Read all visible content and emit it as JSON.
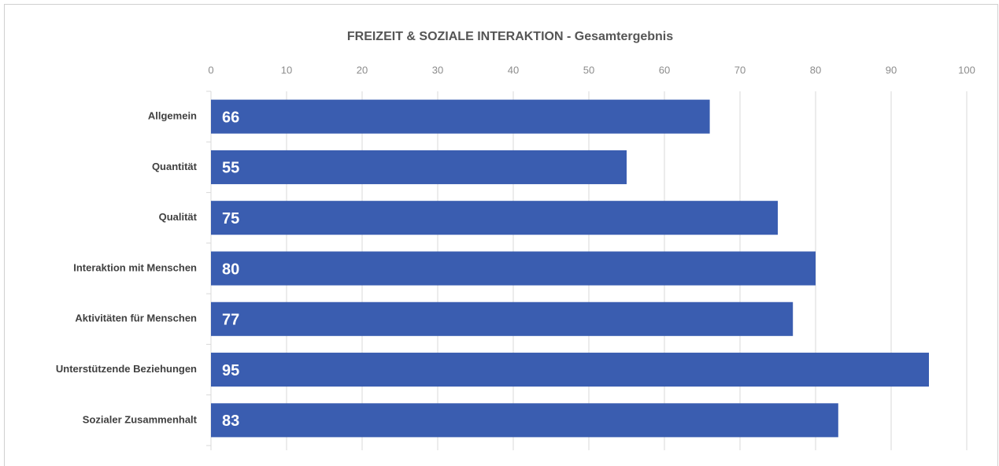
{
  "chart_data": {
    "type": "bar",
    "title": "FREIZEIT & SOZIALE INTERAKTION - Gesamtergebnis",
    "categories": [
      "Allgemein",
      "Quantität",
      "Qualität",
      "Interaktion mit Menschen",
      "Aktivitäten für Menschen",
      "Unterstützende Beziehungen",
      "Sozialer Zusammenhalt"
    ],
    "values": [
      66,
      55,
      75,
      80,
      77,
      95,
      83
    ],
    "color": "#3a5db0",
    "xlim": [
      0,
      100
    ],
    "xticks": [
      0,
      10,
      20,
      30,
      40,
      50,
      60,
      70,
      80,
      90,
      100
    ],
    "grid": true
  }
}
